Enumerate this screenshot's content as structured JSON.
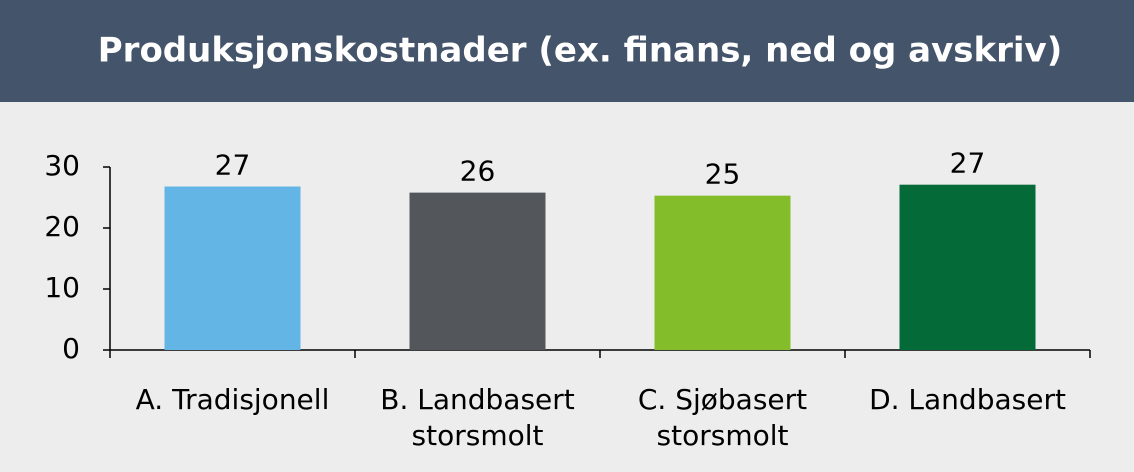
{
  "chart_data": {
    "type": "bar",
    "title": "Produksjonskostnader (ex. finans, ned og avskriv)",
    "categories": [
      [
        "A. Tradisjonell"
      ],
      [
        "B. Landbasert",
        "storsmolt"
      ],
      [
        "C. Sjøbasert",
        "storsmolt"
      ],
      [
        "D. Landbasert"
      ]
    ],
    "values": [
      26.8,
      25.8,
      25.3,
      27.1
    ],
    "value_labels": [
      "27",
      "26",
      "25",
      "27"
    ],
    "colors": [
      "#62b5e5",
      "#53565a",
      "#84bd2a",
      "#046a38"
    ],
    "ylim": [
      0,
      30
    ],
    "yticks": [
      0,
      10,
      20,
      30
    ]
  }
}
